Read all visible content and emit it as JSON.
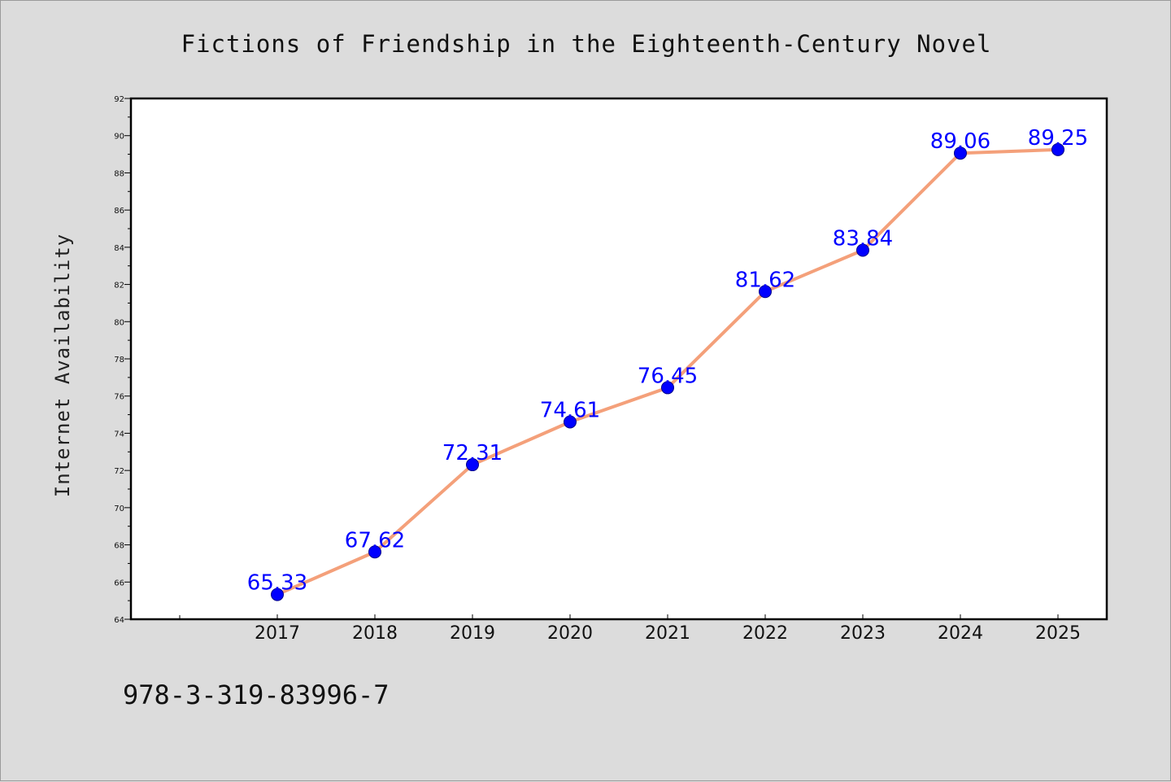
{
  "chart_data": {
    "type": "line",
    "title": "Fictions of Friendship in the Eighteenth-Century Novel",
    "xlabel": "",
    "ylabel": "Internet Availability",
    "categories": [
      "2017",
      "2018",
      "2019",
      "2020",
      "2021",
      "2022",
      "2023",
      "2024",
      "2025"
    ],
    "series": [
      {
        "values": [
          65.33,
          67.62,
          72.31,
          74.61,
          76.45,
          81.62,
          83.84,
          89.06,
          89.25
        ]
      }
    ],
    "data_labels": [
      "65.33",
      "67.62",
      "72.31",
      "74.61",
      "76.45",
      "81.62",
      "83.84",
      "89.06",
      "89.25"
    ],
    "ylim": [
      64,
      92
    ],
    "yticks": [
      "64",
      "66",
      "68",
      "70",
      "72",
      "74",
      "76",
      "78",
      "80",
      "82",
      "84",
      "86",
      "88",
      "90",
      "92"
    ],
    "grid": false,
    "legend": "none",
    "colors": {
      "line": "#f4a07a",
      "marker": "#0000ff",
      "label": "#0000ff",
      "background": "#dcdcdc",
      "plot_area": "#ffffff"
    }
  },
  "footer": {
    "text": "978-3-319-83996-7"
  }
}
